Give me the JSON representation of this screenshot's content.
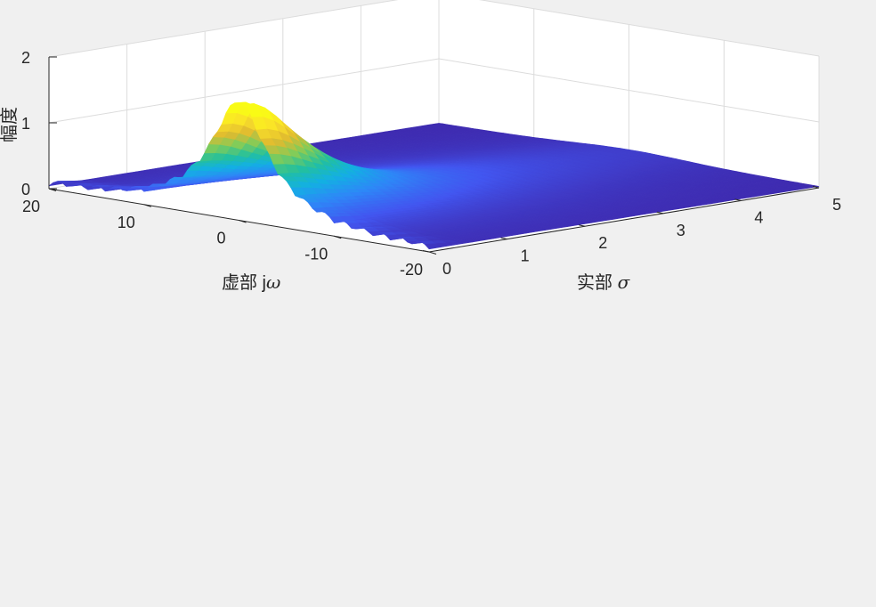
{
  "chart_data": {
    "type": "surface",
    "title": "",
    "xlabel_text": "实部",
    "xlabel_symbol": "σ",
    "ylabel_text": "虚部 j",
    "ylabel_symbol": "ω",
    "zlabel": "幅度",
    "xlim": [
      0,
      5
    ],
    "ylim": [
      -20,
      20
    ],
    "zlim": [
      0,
      2
    ],
    "xticks": [
      "0",
      "1",
      "2",
      "3",
      "4",
      "5"
    ],
    "yticks": [
      "20",
      "10",
      "0",
      "-10",
      "-20"
    ],
    "zticks": [
      "0",
      "1",
      "2"
    ],
    "colormap": "parula",
    "colors": [
      "#3e26a8",
      "#4256f0",
      "#2e87f7",
      "#13b0e3",
      "#23c09d",
      "#81cc59",
      "#dfba30",
      "#fae02a",
      "#f9fb15"
    ],
    "grid": true,
    "surface": {
      "description_note": "",
      "peak": {
        "x": 0.1,
        "y": 0,
        "z": 1.54
      },
      "ripple_period_y": 2
    }
  }
}
